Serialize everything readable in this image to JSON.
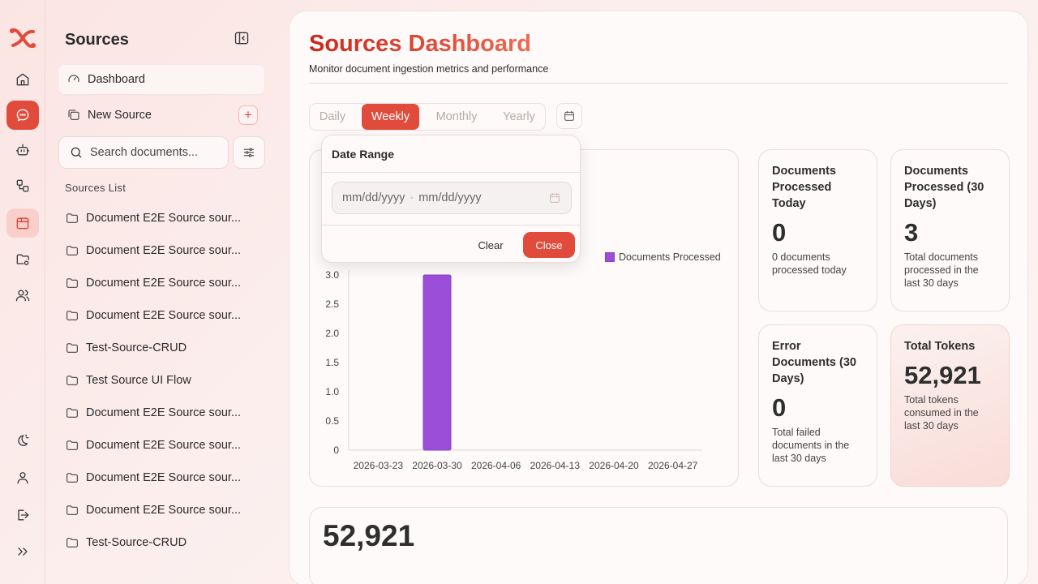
{
  "rail": {
    "items": [
      {
        "icon": "home-icon"
      },
      {
        "icon": "chat-icon",
        "state": "active"
      },
      {
        "icon": "bot-icon"
      },
      {
        "icon": "workflow-icon"
      },
      {
        "icon": "sources-icon",
        "state": "selected"
      },
      {
        "icon": "folder-settings-icon"
      },
      {
        "icon": "users-icon"
      }
    ],
    "bottom": [
      {
        "icon": "theme-toggle-icon"
      },
      {
        "icon": "user-icon"
      },
      {
        "icon": "logout-icon"
      },
      {
        "icon": "expand-icon"
      }
    ]
  },
  "sidebar": {
    "title": "Sources",
    "dashboard_label": "Dashboard",
    "new_source_label": "New Source",
    "search_placeholder": "Search documents...",
    "list_heading": "Sources List",
    "sources": [
      "Document E2E Source sour...",
      "Document E2E Source sour...",
      "Document E2E Source sour...",
      "Document E2E Source sour...",
      "Test-Source-CRUD",
      "Test Source UI Flow",
      "Document E2E Source sour...",
      "Document E2E Source sour...",
      "Document E2E Source sour...",
      "Document E2E Source sour...",
      "Test-Source-CRUD"
    ]
  },
  "main": {
    "title": "Sources Dashboard",
    "subtitle": "Monitor document ingestion metrics and performance",
    "periods": [
      "Daily",
      "Weekly",
      "Monthly",
      "Yearly"
    ],
    "active_period": "Weekly",
    "stats": [
      {
        "title": "Documents Processed Today",
        "value": "0",
        "desc": "0 documents processed today"
      },
      {
        "title": "Documents Processed (30 Days)",
        "value": "3",
        "desc": "Total documents processed in the last 30 days"
      },
      {
        "title": "Error Documents (30 Days)",
        "value": "0",
        "desc": "Total failed documents in the last 30 days"
      },
      {
        "title": "Total Tokens",
        "value": "52,921",
        "desc": "Total tokens consumed in the last 30 days"
      }
    ],
    "bottom_value": "52,921"
  },
  "date_popover": {
    "title": "Date Range",
    "start_placeholder": "mm/dd/yyyy",
    "separator": "-",
    "end_placeholder": "mm/dd/yyyy",
    "clear_label": "Clear",
    "close_label": "Close"
  },
  "colors": {
    "accent": "#e14b3b",
    "bar": "#9b4ed8"
  },
  "chart_data": {
    "type": "bar",
    "categories": [
      "2026-03-23",
      "2026-03-30",
      "2026-04-06",
      "2026-04-13",
      "2026-04-20",
      "2026-04-27"
    ],
    "series": [
      {
        "name": "Documents Processed",
        "values": [
          0,
          3,
          0,
          0,
          0,
          0
        ]
      }
    ],
    "yticks": [
      "0",
      "0.5",
      "1.0",
      "1.5",
      "2.0",
      "2.5",
      "3.0"
    ],
    "ylim": [
      0,
      3
    ],
    "legend_position": "top-right",
    "grid": false
  }
}
